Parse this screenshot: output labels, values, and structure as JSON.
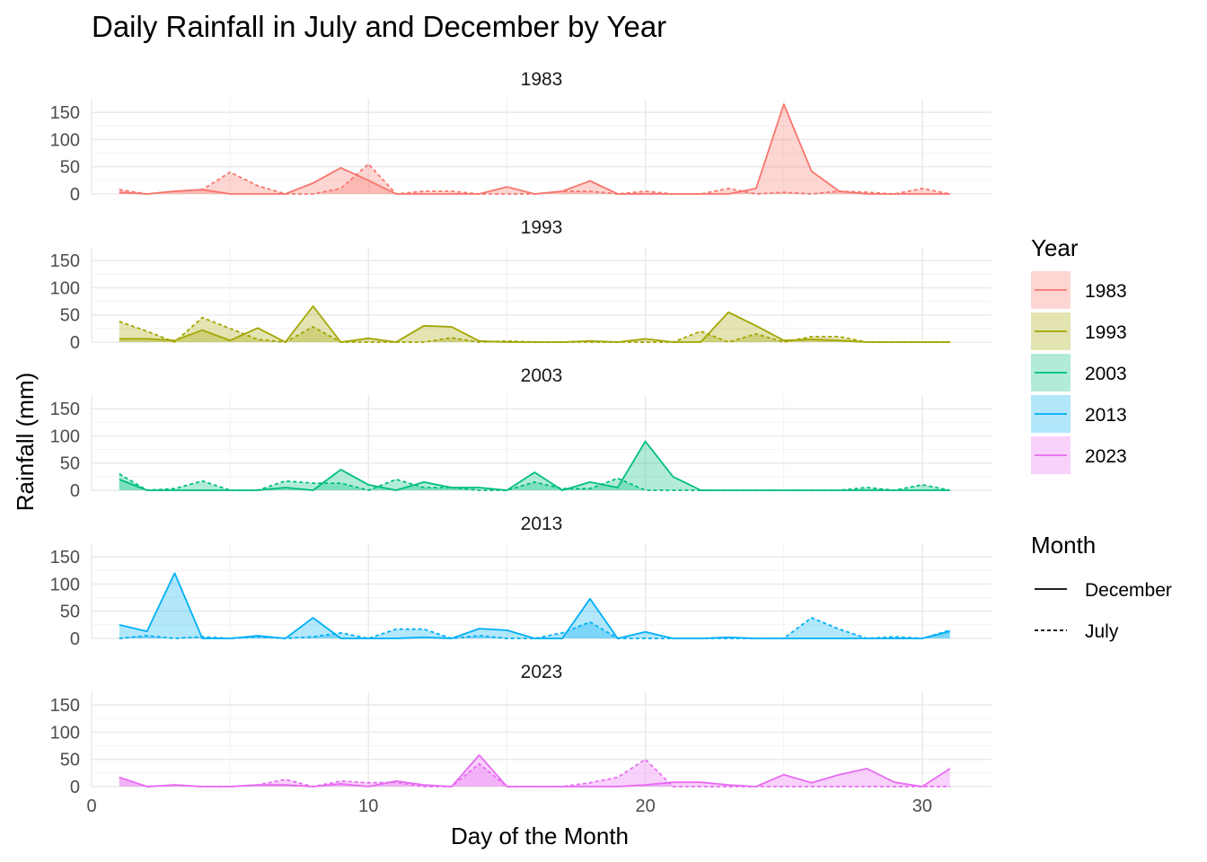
{
  "chart_data": {
    "type": "area",
    "title": "Daily Rainfall in July and December by Year",
    "xlabel": "Day of the Month",
    "ylabel": "Rainfall (mm)",
    "xlim": [
      0,
      32.5
    ],
    "ylim": [
      0,
      175
    ],
    "x_ticks": [
      0,
      10,
      20,
      30
    ],
    "y_ticks": [
      0,
      50,
      100,
      150
    ],
    "grid": true,
    "legend_placement": "right",
    "legend_year_title": "Year",
    "legend_month_title": "Month",
    "months": [
      {
        "name": "December",
        "line_style": "solid"
      },
      {
        "name": "July",
        "line_style": "dashed"
      }
    ],
    "x": [
      1,
      2,
      3,
      4,
      5,
      6,
      7,
      8,
      9,
      10,
      11,
      12,
      13,
      14,
      15,
      16,
      17,
      18,
      19,
      20,
      21,
      22,
      23,
      24,
      25,
      26,
      27,
      28,
      29,
      30,
      31
    ],
    "panels": [
      {
        "year": "1983",
        "color": "#F8766D",
        "december": [
          3,
          0,
          5,
          8,
          0,
          0,
          0,
          20,
          48,
          25,
          0,
          0,
          0,
          0,
          13,
          0,
          5,
          24,
          0,
          0,
          0,
          0,
          0,
          10,
          165,
          42,
          5,
          0,
          0,
          0,
          0
        ],
        "july": [
          8,
          0,
          5,
          8,
          40,
          15,
          0,
          0,
          10,
          55,
          0,
          5,
          5,
          0,
          0,
          0,
          5,
          5,
          0,
          5,
          0,
          0,
          10,
          0,
          3,
          0,
          5,
          3,
          0,
          10,
          0
        ]
      },
      {
        "year": "1993",
        "color": "#A3A500",
        "december": [
          6,
          6,
          3,
          22,
          3,
          26,
          0,
          66,
          0,
          7,
          0,
          30,
          28,
          2,
          0,
          0,
          0,
          2,
          0,
          6,
          0,
          0,
          55,
          30,
          3,
          5,
          3,
          0,
          0,
          0,
          0
        ],
        "july": [
          38,
          20,
          0,
          45,
          25,
          5,
          0,
          28,
          0,
          0,
          0,
          0,
          8,
          0,
          2,
          0,
          0,
          0,
          0,
          0,
          0,
          20,
          0,
          15,
          0,
          10,
          10,
          0,
          0,
          0,
          0
        ]
      },
      {
        "year": "2003",
        "color": "#00BF7D",
        "december": [
          20,
          0,
          0,
          0,
          0,
          0,
          5,
          0,
          38,
          10,
          0,
          15,
          5,
          5,
          0,
          33,
          0,
          15,
          5,
          90,
          25,
          0,
          0,
          0,
          0,
          0,
          0,
          0,
          0,
          0,
          0
        ],
        "july": [
          30,
          0,
          3,
          17,
          0,
          0,
          17,
          13,
          13,
          0,
          20,
          5,
          5,
          0,
          0,
          15,
          3,
          3,
          22,
          0,
          0,
          0,
          0,
          0,
          0,
          0,
          0,
          5,
          0,
          10,
          0
        ]
      },
      {
        "year": "2013",
        "color": "#00B0F6",
        "december": [
          25,
          13,
          120,
          0,
          0,
          5,
          0,
          38,
          0,
          0,
          0,
          2,
          0,
          18,
          15,
          0,
          0,
          73,
          0,
          12,
          0,
          0,
          2,
          0,
          0,
          0,
          0,
          0,
          0,
          0,
          13
        ],
        "july": [
          0,
          5,
          0,
          3,
          0,
          3,
          0,
          3,
          10,
          0,
          17,
          17,
          0,
          5,
          0,
          0,
          10,
          30,
          0,
          0,
          0,
          0,
          0,
          0,
          0,
          38,
          17,
          0,
          3,
          0,
          15
        ]
      },
      {
        "year": "2023",
        "color": "#E76BF3",
        "december": [
          17,
          0,
          3,
          0,
          0,
          3,
          3,
          0,
          5,
          0,
          10,
          3,
          0,
          58,
          0,
          0,
          0,
          0,
          0,
          3,
          8,
          8,
          3,
          0,
          22,
          7,
          22,
          33,
          8,
          0,
          33
        ],
        "july": [
          17,
          0,
          3,
          0,
          0,
          3,
          13,
          0,
          10,
          7,
          8,
          0,
          0,
          42,
          0,
          0,
          0,
          7,
          17,
          50,
          0,
          0,
          0,
          0,
          0,
          0,
          0,
          0,
          0,
          0,
          0
        ]
      }
    ]
  }
}
